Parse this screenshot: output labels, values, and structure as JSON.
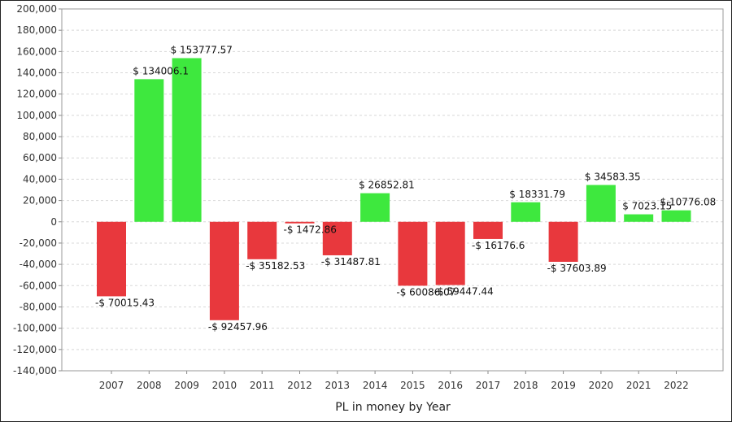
{
  "chart_data": {
    "type": "bar",
    "xlabel": "PL in money by Year",
    "ylabel": "",
    "ylim": [
      -140000,
      200000
    ],
    "y_ticks": [
      "-140,000",
      "-120,000",
      "-100,000",
      "-80,000",
      "-60,000",
      "-40,000",
      "-20,000",
      "0",
      "20,000",
      "40,000",
      "60,000",
      "80,000",
      "100,000",
      "120,000",
      "140,000",
      "160,000",
      "180,000",
      "200,000"
    ],
    "grid": true,
    "colors": {
      "positive": "#3ee83e",
      "negative": "#e8383d",
      "grid": "#d8d8d8"
    },
    "categories": [
      "2007",
      "2008",
      "2009",
      "2010",
      "2011",
      "2012",
      "2013",
      "2014",
      "2015",
      "2016",
      "2017",
      "2018",
      "2019",
      "2020",
      "2021",
      "2022"
    ],
    "values": [
      -70015.43,
      134006.1,
      153777.57,
      -92457.96,
      -35182.53,
      -1472.86,
      -31487.81,
      26852.81,
      -60086.07,
      -59447.44,
      -16176.6,
      18331.79,
      -37603.89,
      34583.35,
      7023.15,
      10776.08
    ],
    "data_labels": [
      "-$ 70015.43",
      "$ 134006.1",
      "$ 153777.57",
      "-$ 92457.96",
      "-$ 35182.53",
      "-$ 1472.86",
      "-$ 31487.81",
      "$ 26852.81",
      "-$ 60086.07",
      "-$ 59447.44",
      "-$ 16176.6",
      "$ 18331.79",
      "-$ 37603.89",
      "$ 34583.35",
      "$ 7023.15",
      "$ 10776.08"
    ]
  }
}
